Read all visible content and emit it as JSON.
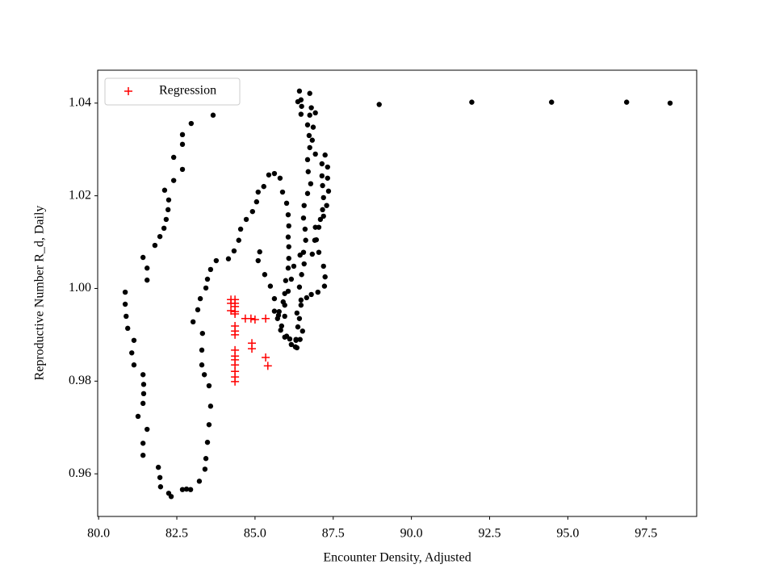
{
  "chart_data": {
    "type": "scatter",
    "x_label": "Encounter Density, Adjusted",
    "y_label": "Reproductive Number R_d, Daily",
    "xlim": [
      79.97,
      99.12
    ],
    "ylim": [
      0.9508,
      1.0471
    ],
    "xticks": [
      {
        "value": 80,
        "label": "80.0"
      },
      82.5,
      {
        "value": 85,
        "label": "85.0"
      },
      87.5,
      {
        "value": 90,
        "label": "90.0"
      },
      92.5,
      {
        "value": 95,
        "label": "95.0"
      },
      97.5
    ],
    "yticks": [
      0.96,
      0.98,
      {
        "value": 1,
        "label": "1.00"
      },
      1.02,
      1.04
    ],
    "legend": "upper left",
    "series": [
      {
        "color": "#000000",
        "marker": "dot",
        "x": [
          88.97,
          91.93,
          94.48,
          96.88,
          98.27,
          83.66,
          82.96,
          82.68,
          82.68,
          82.4,
          82.68,
          82.4,
          82.11,
          82.24,
          82.22,
          82.16,
          82.09,
          81.96,
          81.8,
          81.42,
          81.55,
          81.55,
          80.85,
          80.85,
          80.88,
          80.93,
          81.13,
          81.06,
          81.13,
          81.42,
          81.44,
          81.44,
          81.42,
          81.26,
          81.55,
          81.42,
          81.42,
          81.91,
          81.96,
          81.98,
          82.24,
          82.32,
          82.68,
          82.81,
          82.94,
          83.22,
          83.4,
          83.43,
          83.48,
          83.53,
          83.58,
          83.53,
          83.38,
          83.3,
          83.3,
          83.32,
          83.02,
          83.17,
          83.25,
          83.43,
          83.48,
          83.58,
          83.76,
          84.15,
          84.33,
          84.48,
          84.54,
          84.72,
          84.92,
          85.05,
          85.1,
          85.28,
          85.44,
          85.62,
          85.8,
          85.88,
          86.01,
          86.06,
          86.08,
          86.06,
          86.08,
          86.08,
          86.06,
          85.98,
          85.95,
          85.95,
          85.95,
          85.85,
          86.01,
          86.11,
          85.15,
          85.1,
          85.31,
          85.49,
          85.62,
          85.77,
          85.75,
          86.29,
          86.31,
          86.37,
          86.34,
          86.47,
          86.42,
          86.49,
          86.57,
          86.55,
          86.62,
          86.6,
          86.55,
          86.57,
          86.68,
          86.78,
          86.7,
          86.68,
          86.75,
          86.73,
          86.68,
          86.47,
          86.37,
          86.42,
          86.49,
          86.8,
          86.93,
          86.86,
          86.83,
          86.93,
          87.14,
          87.14,
          87.16,
          87.19,
          87.16,
          87.09,
          86.93,
          86.96,
          87.04,
          87.19,
          87.24,
          87.22,
          87.01,
          86.8,
          86.65,
          86.47,
          86.42,
          86.52,
          86.44,
          86.34,
          86.31,
          86.16,
          85.95,
          85.82,
          85.72,
          85.62,
          85.9,
          86.06,
          86.16,
          86.24,
          86.44,
          86.83,
          86.91,
          87.04,
          87.19,
          87.29,
          87.35,
          87.32,
          87.32,
          87.24,
          86.75,
          86.75,
          86.47
        ],
        "values": [
          1.0397,
          1.0402,
          1.0402,
          1.0402,
          1.04,
          1.0374,
          1.0356,
          1.0332,
          1.0311,
          1.0283,
          1.0257,
          1.0233,
          1.0212,
          1.0191,
          1.017,
          1.0149,
          1.013,
          1.0112,
          1.0093,
          1.0067,
          1.0044,
          1.0018,
          0.9992,
          0.9966,
          0.994,
          0.9914,
          0.9888,
          0.9861,
          0.9835,
          0.9814,
          0.9793,
          0.9773,
          0.9752,
          0.9724,
          0.9696,
          0.9666,
          0.964,
          0.9614,
          0.9592,
          0.9572,
          0.9558,
          0.9551,
          0.9566,
          0.9567,
          0.9566,
          0.9584,
          0.961,
          0.9633,
          0.9668,
          0.9706,
          0.9746,
          0.979,
          0.9814,
          0.9835,
          0.9867,
          0.9903,
          0.9928,
          0.9954,
          0.9978,
          1.0001,
          1.002,
          1.0041,
          1.006,
          1.0064,
          1.0081,
          1.0104,
          1.0128,
          1.0149,
          1.0166,
          1.0187,
          1.0208,
          1.022,
          1.0245,
          1.0248,
          1.0238,
          1.0208,
          1.0184,
          1.0159,
          1.0135,
          1.0111,
          1.009,
          1.0065,
          1.0044,
          1.0017,
          0.9989,
          0.9964,
          0.994,
          0.9919,
          0.9897,
          0.9891,
          1.0079,
          1.006,
          1.003,
          1.0005,
          0.9978,
          0.995,
          0.9942,
          0.9874,
          0.9888,
          0.9917,
          0.9947,
          0.9975,
          1.0003,
          1.003,
          1.0053,
          1.0078,
          1.0104,
          1.0128,
          1.0152,
          1.0179,
          1.0205,
          1.0226,
          1.0252,
          1.0278,
          1.0304,
          1.033,
          1.0353,
          1.0376,
          1.0403,
          1.0426,
          1.0393,
          1.039,
          1.0379,
          1.0348,
          1.032,
          1.029,
          1.0269,
          1.0243,
          1.0222,
          1.0196,
          1.017,
          1.0149,
          1.0132,
          1.0105,
          1.0078,
          1.0048,
          1.0025,
          1.0005,
          0.9992,
          0.9987,
          0.998,
          0.9964,
          0.9935,
          0.9908,
          0.989,
          0.9872,
          0.989,
          0.9879,
          0.9895,
          0.991,
          0.9935,
          0.9951,
          0.9971,
          0.9994,
          1.002,
          1.0048,
          1.0072,
          1.0074,
          1.0104,
          1.0132,
          1.0156,
          1.0179,
          1.021,
          1.0238,
          1.0262,
          1.0288,
          1.0374,
          1.0421,
          1.0407
        ]
      },
      {
        "name": "Regression",
        "color": "#ff0000",
        "marker": "plus",
        "x": [
          84.36,
          84.36,
          84.36,
          84.36,
          84.36,
          84.36,
          84.36,
          84.36,
          84.36,
          84.36,
          84.36,
          84.36,
          84.36,
          84.36,
          84.36,
          84.23,
          84.23,
          84.23,
          84.69,
          84.87,
          85.0,
          85.34,
          84.9,
          84.9,
          85.34,
          85.41
        ],
        "values": [
          0.9976,
          0.9968,
          0.9961,
          0.995,
          0.9945,
          0.9919,
          0.9908,
          0.99,
          0.9867,
          0.9854,
          0.9846,
          0.9835,
          0.9821,
          0.9809,
          0.9799,
          0.9976,
          0.9968,
          0.9952,
          0.9935,
          0.9935,
          0.9933,
          0.9935,
          0.9882,
          0.987,
          0.9851,
          0.9833
        ]
      }
    ]
  }
}
